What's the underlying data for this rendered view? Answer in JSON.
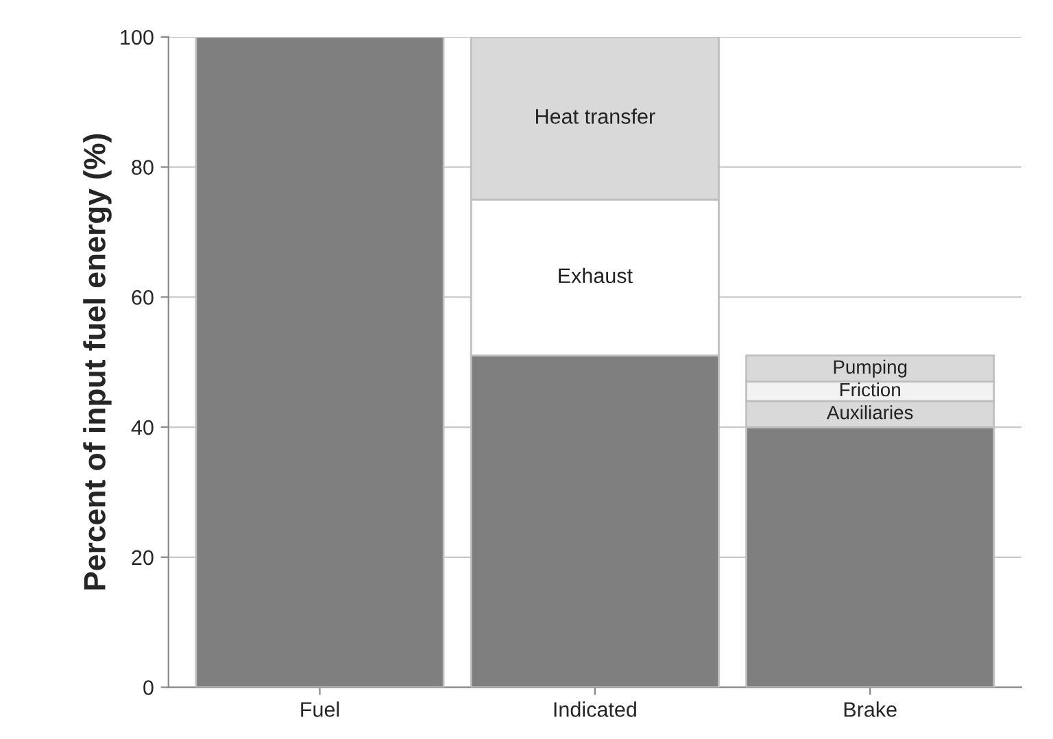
{
  "chart_data": {
    "type": "bar",
    "stacked": true,
    "ylabel": "Percent of input fuel energy (%)",
    "categories": [
      "Fuel",
      "Indicated",
      "Brake"
    ],
    "series": [
      {
        "color": "#7f7f7f",
        "values": [
          100,
          51,
          40
        ]
      },
      {
        "name": "Exhaust",
        "color": "#ffffff",
        "values": [
          null,
          24,
          null
        ]
      },
      {
        "name": "Heat transfer",
        "color": "#d9d9d9",
        "values": [
          null,
          25,
          null
        ]
      },
      {
        "name": "Auxiliaries",
        "color": "#d9d9d9",
        "values": [
          null,
          null,
          4
        ]
      },
      {
        "name": "Friction",
        "color": "#f2f2f2",
        "values": [
          null,
          null,
          3
        ]
      },
      {
        "name": "Pumping",
        "color": "#d9d9d9",
        "values": [
          null,
          null,
          4
        ]
      }
    ],
    "ylim": [
      0,
      100
    ],
    "yticks": [
      0,
      20,
      40,
      60,
      80,
      100
    ],
    "grid": "y",
    "legend": false
  }
}
